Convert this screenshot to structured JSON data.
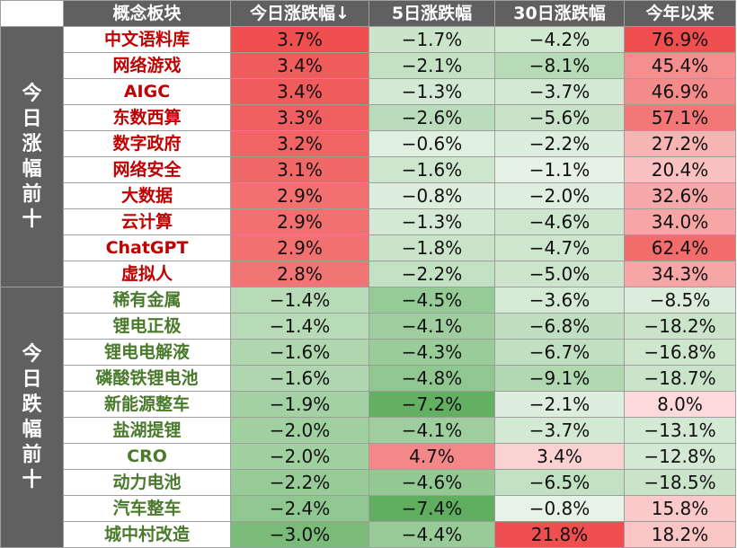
{
  "header": {
    "name": "概念板块",
    "today": "今日涨跌幅↓",
    "d5": "5日涨跌幅",
    "d30": "30日涨跌幅",
    "ytd": "今年以来"
  },
  "groups": [
    {
      "label": "今日涨幅前十",
      "direction": "up",
      "rows": [
        {
          "name": "中文语料库",
          "today": "3.7%",
          "d5": "−1.7%",
          "d30": "−4.2%",
          "ytd": "76.9%"
        },
        {
          "name": "网络游戏",
          "today": "3.4%",
          "d5": "−2.1%",
          "d30": "−8.1%",
          "ytd": "45.4%"
        },
        {
          "name": "AIGC",
          "today": "3.4%",
          "d5": "−1.3%",
          "d30": "−3.7%",
          "ytd": "46.9%"
        },
        {
          "name": "东数西算",
          "today": "3.3%",
          "d5": "−2.6%",
          "d30": "−5.6%",
          "ytd": "57.1%"
        },
        {
          "name": "数字政府",
          "today": "3.2%",
          "d5": "−0.6%",
          "d30": "−2.2%",
          "ytd": "27.2%"
        },
        {
          "name": "网络安全",
          "today": "3.1%",
          "d5": "−1.6%",
          "d30": "−1.1%",
          "ytd": "20.4%"
        },
        {
          "name": "大数据",
          "today": "2.9%",
          "d5": "−0.8%",
          "d30": "−2.0%",
          "ytd": "32.6%"
        },
        {
          "name": "云计算",
          "today": "2.9%",
          "d5": "−1.3%",
          "d30": "−4.6%",
          "ytd": "34.0%"
        },
        {
          "name": "ChatGPT",
          "today": "2.9%",
          "d5": "−1.8%",
          "d30": "−4.7%",
          "ytd": "62.4%"
        },
        {
          "name": "虚拟人",
          "today": "2.8%",
          "d5": "−2.2%",
          "d30": "−5.0%",
          "ytd": "34.3%"
        }
      ]
    },
    {
      "label": "今日跌幅前十",
      "direction": "down",
      "rows": [
        {
          "name": "稀有金属",
          "today": "−1.4%",
          "d5": "−4.5%",
          "d30": "−3.6%",
          "ytd": "−8.5%"
        },
        {
          "name": "锂电正极",
          "today": "−1.4%",
          "d5": "−4.1%",
          "d30": "−6.8%",
          "ytd": "−18.2%"
        },
        {
          "name": "锂电电解液",
          "today": "−1.6%",
          "d5": "−4.3%",
          "d30": "−6.7%",
          "ytd": "−16.8%"
        },
        {
          "name": "磷酸铁锂电池",
          "today": "−1.6%",
          "d5": "−4.8%",
          "d30": "−9.1%",
          "ytd": "−18.7%"
        },
        {
          "name": "新能源整车",
          "today": "−1.9%",
          "d5": "−7.2%",
          "d30": "−2.1%",
          "ytd": "8.0%"
        },
        {
          "name": "盐湖提锂",
          "today": "−2.0%",
          "d5": "−4.1%",
          "d30": "−3.7%",
          "ytd": "−13.1%"
        },
        {
          "name": "CRO",
          "today": "−2.0%",
          "d5": "4.7%",
          "d30": "3.4%",
          "ytd": "−12.8%"
        },
        {
          "name": "动力电池",
          "today": "−2.2%",
          "d5": "−4.6%",
          "d30": "−6.5%",
          "ytd": "−18.5%"
        },
        {
          "name": "汽车整车",
          "today": "−2.4%",
          "d5": "−7.4%",
          "d30": "−0.8%",
          "ytd": "15.8%"
        },
        {
          "name": "城中村改造",
          "today": "−3.0%",
          "d5": "−4.4%",
          "d30": "21.8%",
          "ytd": "18.2%"
        }
      ]
    }
  ],
  "colors": {
    "header_bg": "#606060",
    "up_text": "#c00000",
    "down_text": "#4a7a2c",
    "positive": "#ef4f4f",
    "negative": "#5fae5f"
  }
}
